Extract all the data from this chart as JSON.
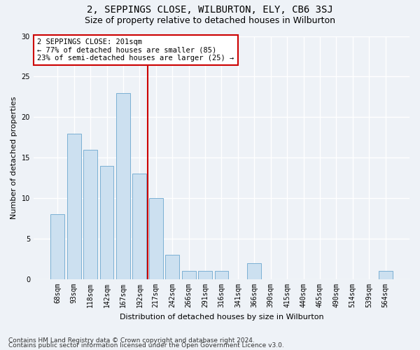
{
  "title": "2, SEPPINGS CLOSE, WILBURTON, ELY, CB6 3SJ",
  "subtitle": "Size of property relative to detached houses in Wilburton",
  "xlabel": "Distribution of detached houses by size in Wilburton",
  "ylabel": "Number of detached properties",
  "categories": [
    "68sqm",
    "93sqm",
    "118sqm",
    "142sqm",
    "167sqm",
    "192sqm",
    "217sqm",
    "242sqm",
    "266sqm",
    "291sqm",
    "316sqm",
    "341sqm",
    "366sqm",
    "390sqm",
    "415sqm",
    "440sqm",
    "465sqm",
    "490sqm",
    "514sqm",
    "539sqm",
    "564sqm"
  ],
  "values": [
    8,
    18,
    16,
    14,
    23,
    13,
    10,
    3,
    1,
    1,
    1,
    0,
    2,
    0,
    0,
    0,
    0,
    0,
    0,
    0,
    1
  ],
  "bar_color": "#cce0f0",
  "bar_edge_color": "#7ab0d4",
  "bar_width": 0.85,
  "vline_x": 6.0,
  "vline_color": "#cc0000",
  "annotation_text": "2 SEPPINGS CLOSE: 201sqm\n← 77% of detached houses are smaller (85)\n23% of semi-detached houses are larger (25) →",
  "annotation_box_color": "#ffffff",
  "annotation_box_edge_color": "#cc0000",
  "ylim": [
    0,
    30
  ],
  "yticks": [
    0,
    5,
    10,
    15,
    20,
    25,
    30
  ],
  "footer1": "Contains HM Land Registry data © Crown copyright and database right 2024.",
  "footer2": "Contains public sector information licensed under the Open Government Licence v3.0.",
  "bg_color": "#eef2f7",
  "plot_bg_color": "#eef2f7",
  "grid_color": "#ffffff",
  "title_fontsize": 10,
  "subtitle_fontsize": 9,
  "axis_label_fontsize": 8,
  "tick_fontsize": 7,
  "annotation_fontsize": 7.5,
  "footer_fontsize": 6.5
}
